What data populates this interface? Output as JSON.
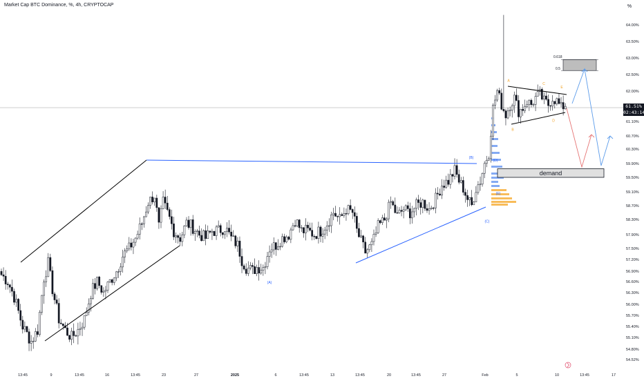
{
  "header": {
    "title": "Market Cap BTC Dominance, %, 4h, CRYPTOCAP",
    "scale_button": "%"
  },
  "price_tag": {
    "value": "61.51%",
    "countdown": "02:43:14"
  },
  "zones": {
    "demand_label": "demand",
    "fib_0618": "0.618",
    "fib_05": "0.5"
  },
  "colors": {
    "up_candle": "#ffffff",
    "down_candle": "#131722",
    "trendline_blue": "#2962ff",
    "trendline_black": "#000000",
    "wave_label_blue": "#2962ff",
    "wave_label_orange": "#f0a020",
    "projection_red": "#e57373",
    "projection_blue": "#5b9bea",
    "volume_profile_blue": "#5b8def",
    "volume_profile_orange": "#f5a623"
  },
  "chart_data": {
    "type": "candlestick",
    "title": "Market Cap BTC Dominance, %, 4h, CRYPTOCAP",
    "y_unit": "%",
    "ylim": [
      54.3,
      64.2
    ],
    "y_ticks": [
      "64.00%",
      "63.50%",
      "63.00%",
      "62.50%",
      "62.00%",
      "61.51%",
      "61.10%",
      "60.70%",
      "60.30%",
      "59.90%",
      "59.50%",
      "59.10%",
      "58.70%",
      "58.30%",
      "57.90%",
      "57.50%",
      "57.20%",
      "56.90%",
      "56.60%",
      "56.30%",
      "56.00%",
      "55.70%",
      "55.40%",
      "55.10%",
      "54.80%",
      "54.52%"
    ],
    "y_tick_values": [
      64.0,
      63.5,
      63.0,
      62.5,
      62.0,
      61.51,
      61.1,
      60.7,
      60.3,
      59.9,
      59.5,
      59.1,
      58.7,
      58.3,
      57.9,
      57.5,
      57.2,
      56.9,
      56.6,
      56.3,
      56.0,
      55.7,
      55.4,
      55.1,
      54.8,
      54.52
    ],
    "x_ticks": [
      "13:45",
      "9",
      "13:45",
      "16",
      "13:45",
      "23",
      "27",
      "2025",
      "6",
      "13:45",
      "13",
      "13:45",
      "20",
      "13:45",
      "27",
      "Feb",
      "5",
      "10",
      "13:45",
      "17"
    ],
    "current_value": 61.51,
    "countdown": "02:43:14",
    "close_path_anchors": [
      [
        0,
        56.8
      ],
      [
        3,
        56.6
      ],
      [
        6,
        56.2
      ],
      [
        10,
        55.4
      ],
      [
        14,
        55.0
      ],
      [
        17,
        55.3
      ],
      [
        20,
        56.7
      ],
      [
        22,
        57.1
      ],
      [
        24,
        56.4
      ],
      [
        27,
        55.6
      ],
      [
        30,
        55.3
      ],
      [
        33,
        55.1
      ],
      [
        36,
        55.3
      ],
      [
        39,
        55.6
      ],
      [
        42,
        56.3
      ],
      [
        45,
        56.6
      ],
      [
        48,
        56.3
      ],
      [
        51,
        56.6
      ],
      [
        54,
        56.9
      ],
      [
        57,
        57.3
      ],
      [
        60,
        57.5
      ],
      [
        63,
        57.8
      ],
      [
        66,
        58.2
      ],
      [
        69,
        58.8
      ],
      [
        72,
        59.0
      ],
      [
        74,
        58.1
      ],
      [
        76,
        58.8
      ],
      [
        78,
        58.5
      ],
      [
        81,
        58.0
      ],
      [
        84,
        57.8
      ],
      [
        87,
        58.2
      ],
      [
        90,
        58.1
      ],
      [
        93,
        57.9
      ],
      [
        96,
        57.8
      ],
      [
        99,
        58.0
      ],
      [
        102,
        58.0
      ],
      [
        105,
        58.1
      ],
      [
        108,
        57.8
      ],
      [
        111,
        57.6
      ],
      [
        113,
        57.2
      ],
      [
        115,
        57.0
      ],
      [
        118,
        56.9
      ],
      [
        120,
        57.0
      ],
      [
        123,
        57.0
      ],
      [
        126,
        57.5
      ],
      [
        129,
        57.6
      ],
      [
        132,
        57.8
      ],
      [
        135,
        57.9
      ],
      [
        138,
        58.3
      ],
      [
        141,
        58.0
      ],
      [
        144,
        58.0
      ],
      [
        147,
        57.9
      ],
      [
        150,
        58.0
      ],
      [
        153,
        58.2
      ],
      [
        156,
        58.5
      ],
      [
        159,
        58.3
      ],
      [
        162,
        58.6
      ],
      [
        165,
        58.5
      ],
      [
        167,
        58.0
      ],
      [
        169,
        57.7
      ],
      [
        171,
        57.4
      ],
      [
        174,
        57.6
      ],
      [
        177,
        58.1
      ],
      [
        180,
        58.3
      ],
      [
        183,
        58.8
      ],
      [
        186,
        58.4
      ],
      [
        189,
        58.6
      ],
      [
        192,
        58.5
      ],
      [
        195,
        58.7
      ],
      [
        198,
        58.8
      ],
      [
        201,
        58.6
      ],
      [
        204,
        58.9
      ],
      [
        207,
        59.3
      ],
      [
        210,
        59.4
      ],
      [
        213,
        59.7
      ],
      [
        215,
        59.4
      ],
      [
        217,
        59.2
      ],
      [
        219,
        58.9
      ],
      [
        221,
        58.7
      ],
      [
        223,
        59.2
      ],
      [
        225,
        59.4
      ],
      [
        227,
        59.9
      ],
      [
        229,
        60.2
      ],
      [
        231,
        61.5
      ],
      [
        233,
        62.0
      ],
      [
        235,
        61.6
      ],
      [
        237,
        61.3
      ],
      [
        239,
        61.6
      ],
      [
        241,
        61.8
      ],
      [
        243,
        61.4
      ],
      [
        245,
        61.5
      ],
      [
        247,
        61.7
      ],
      [
        249,
        61.6
      ],
      [
        251,
        61.8
      ],
      [
        253,
        61.9
      ],
      [
        255,
        61.7
      ],
      [
        257,
        61.6
      ],
      [
        259,
        61.8
      ],
      [
        261,
        61.7
      ],
      [
        263,
        61.5
      ],
      [
        265,
        61.6
      ]
    ],
    "spike_high": 64.3,
    "candle_count": 266,
    "wave_labels": [
      {
        "text": "(A)",
        "value": 56.82,
        "color": "blue"
      },
      {
        "text": "(B)",
        "value": 59.96,
        "color": "blue"
      },
      {
        "text": "(C)",
        "value": 58.45,
        "color": "blue"
      },
      {
        "text": "(D)",
        "value": 59.88,
        "color": "blue"
      },
      {
        "text": "(E)",
        "value": 59.1,
        "color": "blue"
      },
      {
        "text": "A",
        "value": 62.2,
        "color": "orange"
      },
      {
        "text": "B",
        "value": 61.0,
        "color": "orange"
      },
      {
        "text": "C",
        "value": 62.1,
        "color": "orange"
      },
      {
        "text": "D",
        "value": 61.25,
        "color": "orange"
      },
      {
        "text": "E",
        "value": 62.0,
        "color": "orange"
      }
    ],
    "zones": [
      {
        "name": "demand",
        "from": 59.5,
        "to": 59.75
      },
      {
        "name": "fib",
        "from": 62.62,
        "to": 62.95,
        "levels": [
          "0.618",
          "0.5"
        ]
      }
    ]
  }
}
